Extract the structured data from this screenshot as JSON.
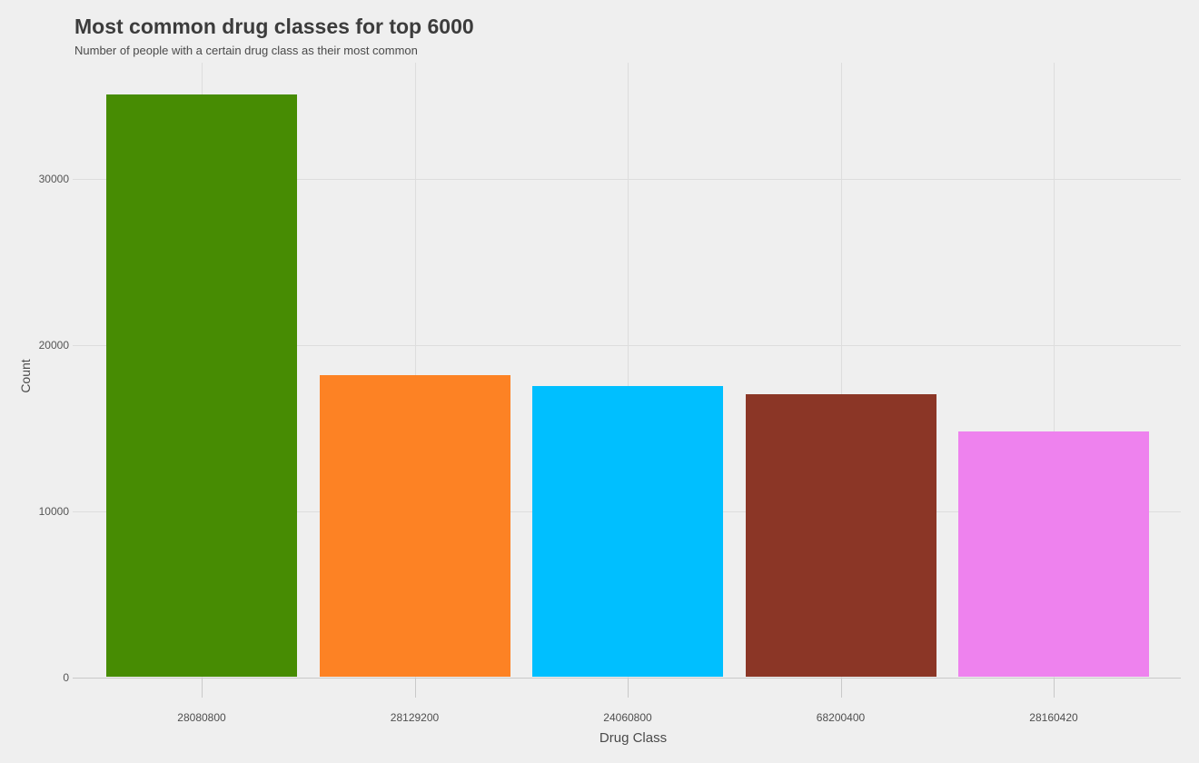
{
  "chart_data": {
    "type": "bar",
    "title": "Most common drug classes for top 6000",
    "subtitle": "Number of people with a certain drug class as their most common",
    "xlabel": "Drug Class",
    "ylabel": "Count",
    "categories": [
      "28080800",
      "28129200",
      "24060800",
      "68200400",
      "28160420"
    ],
    "values": [
      35100,
      18200,
      17550,
      17050,
      14800
    ],
    "bar_colors": [
      "#478C03",
      "#FD8224",
      "#00BFFF",
      "#8B3626",
      "#EE82EE"
    ],
    "yticks": [
      0,
      10000,
      20000,
      30000
    ],
    "ylim": [
      0,
      37000
    ],
    "grid": true,
    "legend": false,
    "colors": {
      "background": "#EFEFEF",
      "gridline": "#DDDDDD",
      "axis": "#C9C9C9",
      "title_text": "#3C3C3C",
      "tick_text": "#555555"
    }
  }
}
